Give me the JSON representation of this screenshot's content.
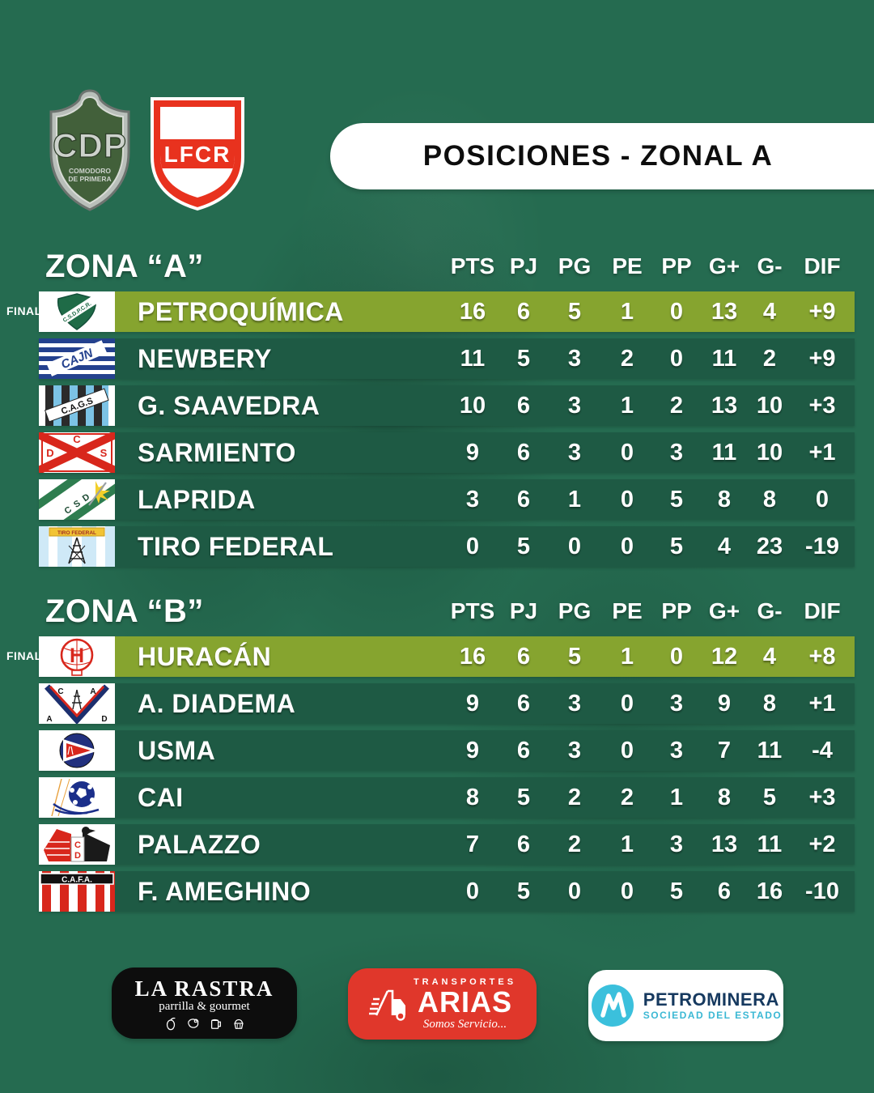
{
  "header": {
    "badge_cdp": {
      "label": "CDP",
      "sub_line1": "COMODORO",
      "sub_line2": "DE PRIMERA"
    },
    "badge_lfcr": {
      "label": "LFCR"
    },
    "title": "POSICIONES - ZONAL A"
  },
  "chart_data": [
    {
      "type": "table",
      "title": "ZONA “A”",
      "columns": [
        "PTS",
        "PJ",
        "PG",
        "PE",
        "PP",
        "G+",
        "G-",
        "DIF"
      ],
      "rows": [
        {
          "team": "PETROQUÍMICA",
          "logo": "petroquimica-crest",
          "highlight": true,
          "tag": "FINAL",
          "values": [
            "16",
            "6",
            "5",
            "1",
            "0",
            "13",
            "4",
            "+9"
          ]
        },
        {
          "team": "NEWBERY",
          "logo": "newbery-crest",
          "highlight": false,
          "values": [
            "11",
            "5",
            "3",
            "2",
            "0",
            "11",
            "2",
            "+9"
          ]
        },
        {
          "team": "G. SAAVEDRA",
          "logo": "saavedra-crest",
          "highlight": false,
          "values": [
            "10",
            "6",
            "3",
            "1",
            "2",
            "13",
            "10",
            "+3"
          ]
        },
        {
          "team": "SARMIENTO",
          "logo": "sarmiento-crest",
          "highlight": false,
          "values": [
            "9",
            "6",
            "3",
            "0",
            "3",
            "11",
            "10",
            "+1"
          ]
        },
        {
          "team": "LAPRIDA",
          "logo": "laprida-crest",
          "highlight": false,
          "values": [
            "3",
            "6",
            "1",
            "0",
            "5",
            "8",
            "8",
            "0"
          ]
        },
        {
          "team": "TIRO FEDERAL",
          "logo": "tirofederal-crest",
          "highlight": false,
          "values": [
            "0",
            "5",
            "0",
            "0",
            "5",
            "4",
            "23",
            "-19"
          ]
        }
      ]
    },
    {
      "type": "table",
      "title": "ZONA “B”",
      "columns": [
        "PTS",
        "PJ",
        "PG",
        "PE",
        "PP",
        "G+",
        "G-",
        "DIF"
      ],
      "rows": [
        {
          "team": "HURACÁN",
          "logo": "huracan-crest",
          "highlight": true,
          "tag": "FINAL",
          "values": [
            "16",
            "6",
            "5",
            "1",
            "0",
            "12",
            "4",
            "+8"
          ]
        },
        {
          "team": "A. DIADEMA",
          "logo": "diadema-crest",
          "highlight": false,
          "values": [
            "9",
            "6",
            "3",
            "0",
            "3",
            "9",
            "8",
            "+1"
          ]
        },
        {
          "team": "USMA",
          "logo": "usma-crest",
          "highlight": false,
          "values": [
            "9",
            "6",
            "3",
            "0",
            "3",
            "7",
            "11",
            "-4"
          ]
        },
        {
          "team": "CAI",
          "logo": "cai-crest",
          "highlight": false,
          "values": [
            "8",
            "5",
            "2",
            "2",
            "1",
            "8",
            "5",
            "+3"
          ]
        },
        {
          "team": "PALAZZO",
          "logo": "palazzo-crest",
          "highlight": false,
          "values": [
            "7",
            "6",
            "2",
            "1",
            "3",
            "13",
            "11",
            "+2"
          ]
        },
        {
          "team": "F. AMEGHINO",
          "logo": "ameghino-crest",
          "highlight": false,
          "values": [
            "0",
            "5",
            "0",
            "0",
            "5",
            "6",
            "16",
            "-10"
          ]
        }
      ]
    }
  ],
  "sponsors": [
    {
      "name": "LA RASTRA",
      "tagline": "parrilla & gourmet",
      "icons": [
        "pepper-icon",
        "steak-icon",
        "beer-icon",
        "cupcake-icon"
      ]
    },
    {
      "kicker": "TRANSPORTES",
      "name": "ARIAS",
      "tagline": "Somos Servicio...",
      "icon": "truck-icon"
    },
    {
      "name": "PETROMINERA",
      "tagline": "SOCIEDAD DEL ESTADO",
      "icon": "petrominera-mark"
    }
  ],
  "colors": {
    "background": "#256b50",
    "row": "#1e5a44",
    "highlight_row": "#86a42f",
    "pill": "#ffffff",
    "rastra_bg": "#0d0d0d",
    "arias_bg": "#e0372b",
    "petrominera_navy": "#16395f",
    "petrominera_cyan": "#3bb8d4",
    "lfcr_red": "#e8321e"
  }
}
